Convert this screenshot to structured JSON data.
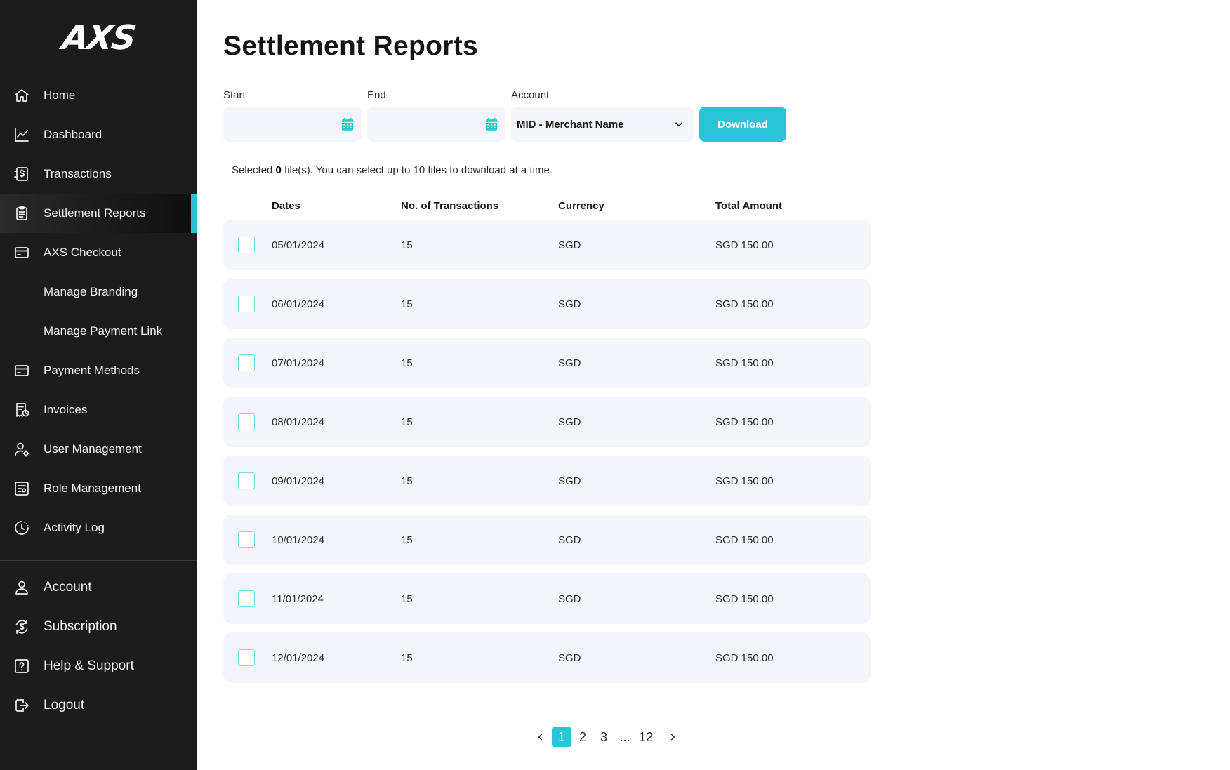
{
  "brand": {
    "logo_text": "AXS",
    "accent": "#2ac4d7"
  },
  "sidebar": {
    "items": [
      {
        "label": "Home",
        "icon": "home-icon"
      },
      {
        "label": "Dashboard",
        "icon": "chart-icon"
      },
      {
        "label": "Transactions",
        "icon": "transactions-icon"
      },
      {
        "label": "Settlement Reports",
        "icon": "clipboard-icon",
        "active": true
      },
      {
        "label": "AXS Checkout",
        "icon": "card-icon"
      },
      {
        "label": "Manage Branding",
        "icon": ""
      },
      {
        "label": "Manage Payment Link",
        "icon": ""
      },
      {
        "label": "Payment Methods",
        "icon": "card-icon"
      },
      {
        "label": "Invoices",
        "icon": "invoice-icon"
      },
      {
        "label": "User Management",
        "icon": "user-gear-icon"
      },
      {
        "label": "Role Management",
        "icon": "roles-icon"
      },
      {
        "label": "Activity Log",
        "icon": "clock-icon"
      }
    ],
    "bottom_items": [
      {
        "label": "Account",
        "icon": "user-icon"
      },
      {
        "label": "Subscription",
        "icon": "subscription-icon"
      },
      {
        "label": "Help & Support",
        "icon": "help-icon"
      },
      {
        "label": "Logout",
        "icon": "logout-icon"
      }
    ]
  },
  "page": {
    "title": "Settlement Reports"
  },
  "filters": {
    "start_label": "Start",
    "start_value": "",
    "end_label": "End",
    "end_value": "",
    "account_label": "Account",
    "account_value": "MID - Merchant Name",
    "download_label": "Download"
  },
  "selection": {
    "prefix": "Selected ",
    "count": "0",
    "suffix": " file(s). You can select up to 10 files to download at a time."
  },
  "table": {
    "headers": [
      "Dates",
      "No. of Transactions",
      "Currency",
      "Total Amount"
    ],
    "rows": [
      {
        "date": "05/01/2024",
        "count": "15",
        "currency": "SGD",
        "amount": "SGD 150.00"
      },
      {
        "date": "06/01/2024",
        "count": "15",
        "currency": "SGD",
        "amount": "SGD 150.00"
      },
      {
        "date": "07/01/2024",
        "count": "15",
        "currency": "SGD",
        "amount": "SGD 150.00"
      },
      {
        "date": "08/01/2024",
        "count": "15",
        "currency": "SGD",
        "amount": "SGD 150.00"
      },
      {
        "date": "09/01/2024",
        "count": "15",
        "currency": "SGD",
        "amount": "SGD 150.00"
      },
      {
        "date": "10/01/2024",
        "count": "15",
        "currency": "SGD",
        "amount": "SGD 150.00"
      },
      {
        "date": "11/01/2024",
        "count": "15",
        "currency": "SGD",
        "amount": "SGD 150.00"
      },
      {
        "date": "12/01/2024",
        "count": "15",
        "currency": "SGD",
        "amount": "SGD 150.00"
      }
    ]
  },
  "pagination": {
    "pages": [
      "1",
      "2",
      "3",
      "...",
      "12"
    ],
    "current": "1"
  }
}
